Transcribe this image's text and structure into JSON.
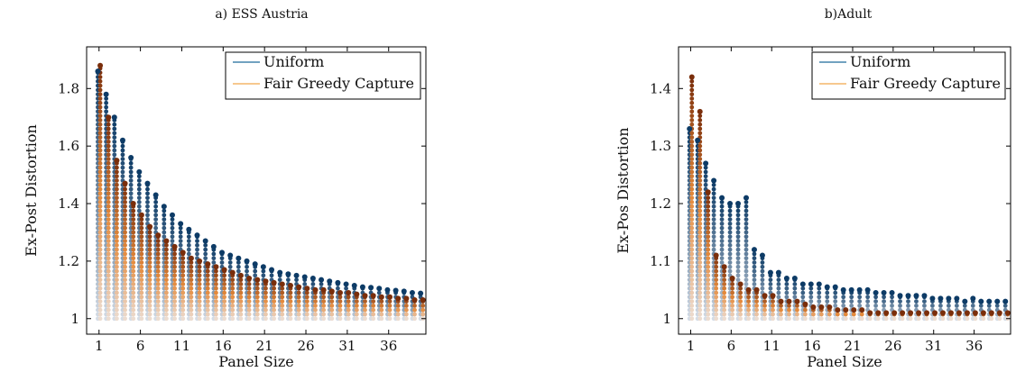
{
  "chart_data": [
    {
      "type": "scatter",
      "title": "a) ESS Austria",
      "xlabel": "Panel Size",
      "ylabel": "Ex-Post Distortion",
      "xlim": [
        1,
        40
      ],
      "ylim": [
        1,
        1.9
      ],
      "xticks": [
        1,
        6,
        11,
        16,
        21,
        26,
        31,
        36
      ],
      "xtick_labels": [
        "1",
        "6",
        "11",
        "16",
        "21",
        "26",
        "31",
        "36"
      ],
      "yticks": [
        1,
        1.2,
        1.4,
        1.6,
        1.8
      ],
      "ytick_labels": [
        "1",
        "1.2",
        "1.4",
        "1.6",
        "1.8"
      ],
      "legend_position": "top-right",
      "series": [
        {
          "name": "Uniform",
          "color": "#0d3b66",
          "x": [
            1,
            2,
            3,
            4,
            5,
            6,
            7,
            8,
            9,
            10,
            11,
            12,
            13,
            14,
            15,
            16,
            17,
            18,
            19,
            20,
            21,
            22,
            23,
            24,
            25,
            26,
            27,
            28,
            29,
            30,
            31,
            32,
            33,
            34,
            35,
            36,
            37,
            38,
            39,
            40
          ],
          "y": [
            1.86,
            1.78,
            1.7,
            1.62,
            1.56,
            1.51,
            1.47,
            1.43,
            1.39,
            1.36,
            1.33,
            1.31,
            1.29,
            1.27,
            1.25,
            1.23,
            1.22,
            1.21,
            1.2,
            1.19,
            1.18,
            1.17,
            1.16,
            1.155,
            1.15,
            1.145,
            1.14,
            1.135,
            1.13,
            1.125,
            1.12,
            1.115,
            1.11,
            1.108,
            1.105,
            1.1,
            1.098,
            1.095,
            1.09,
            1.088
          ]
        },
        {
          "name": "Fair Greedy Capture",
          "color": "#7a2e0b",
          "x": [
            1,
            2,
            3,
            4,
            5,
            6,
            7,
            8,
            9,
            10,
            11,
            12,
            13,
            14,
            15,
            16,
            17,
            18,
            19,
            20,
            21,
            22,
            23,
            24,
            25,
            26,
            27,
            28,
            29,
            30,
            31,
            32,
            33,
            34,
            35,
            36,
            37,
            38,
            39,
            40
          ],
          "y": [
            1.88,
            1.7,
            1.55,
            1.47,
            1.4,
            1.36,
            1.32,
            1.29,
            1.27,
            1.25,
            1.23,
            1.21,
            1.2,
            1.19,
            1.18,
            1.17,
            1.16,
            1.15,
            1.14,
            1.135,
            1.13,
            1.125,
            1.12,
            1.115,
            1.11,
            1.105,
            1.1,
            1.1,
            1.095,
            1.09,
            1.09,
            1.085,
            1.08,
            1.08,
            1.075,
            1.075,
            1.07,
            1.07,
            1.065,
            1.065
          ]
        }
      ]
    },
    {
      "type": "scatter",
      "title": "b)Adult",
      "xlabel": "Panel Size",
      "ylabel": "Ex-Pos Distortion",
      "xlim": [
        1,
        40
      ],
      "ylim": [
        1,
        1.45
      ],
      "xticks": [
        1,
        6,
        11,
        16,
        21,
        26,
        31,
        36
      ],
      "xtick_labels": [
        "1",
        "6",
        "11",
        "16",
        "21",
        "26",
        "31",
        "36"
      ],
      "yticks": [
        1,
        1.1,
        1.2,
        1.3,
        1.4
      ],
      "ytick_labels": [
        "1",
        "1.1",
        "1.2",
        "1.3",
        "1.4"
      ],
      "legend_position": "top-right",
      "series": [
        {
          "name": "Uniform",
          "color": "#0d3b66",
          "x": [
            1,
            2,
            3,
            4,
            5,
            6,
            7,
            8,
            9,
            10,
            11,
            12,
            13,
            14,
            15,
            16,
            17,
            18,
            19,
            20,
            21,
            22,
            23,
            24,
            25,
            26,
            27,
            28,
            29,
            30,
            31,
            32,
            33,
            34,
            35,
            36,
            37,
            38,
            39,
            40
          ],
          "y": [
            1.33,
            1.31,
            1.27,
            1.24,
            1.21,
            1.2,
            1.2,
            1.21,
            1.12,
            1.11,
            1.08,
            1.08,
            1.07,
            1.07,
            1.06,
            1.06,
            1.06,
            1.055,
            1.055,
            1.05,
            1.05,
            1.05,
            1.05,
            1.045,
            1.045,
            1.045,
            1.04,
            1.04,
            1.04,
            1.04,
            1.035,
            1.035,
            1.035,
            1.035,
            1.03,
            1.035,
            1.03,
            1.03,
            1.03,
            1.03
          ]
        },
        {
          "name": "Fair Greedy Capture",
          "color": "#7a2e0b",
          "x": [
            1,
            2,
            3,
            4,
            5,
            6,
            7,
            8,
            9,
            10,
            11,
            12,
            13,
            14,
            15,
            16,
            17,
            18,
            19,
            20,
            21,
            22,
            23,
            24,
            25,
            26,
            27,
            28,
            29,
            30,
            31,
            32,
            33,
            34,
            35,
            36,
            37,
            38,
            39,
            40
          ],
          "y": [
            1.42,
            1.36,
            1.22,
            1.11,
            1.09,
            1.07,
            1.06,
            1.05,
            1.05,
            1.04,
            1.04,
            1.03,
            1.03,
            1.03,
            1.025,
            1.02,
            1.02,
            1.02,
            1.015,
            1.015,
            1.015,
            1.015,
            1.01,
            1.01,
            1.01,
            1.01,
            1.01,
            1.01,
            1.01,
            1.01,
            1.01,
            1.01,
            1.01,
            1.01,
            1.01,
            1.01,
            1.01,
            1.01,
            1.01,
            1.01
          ]
        }
      ]
    }
  ]
}
